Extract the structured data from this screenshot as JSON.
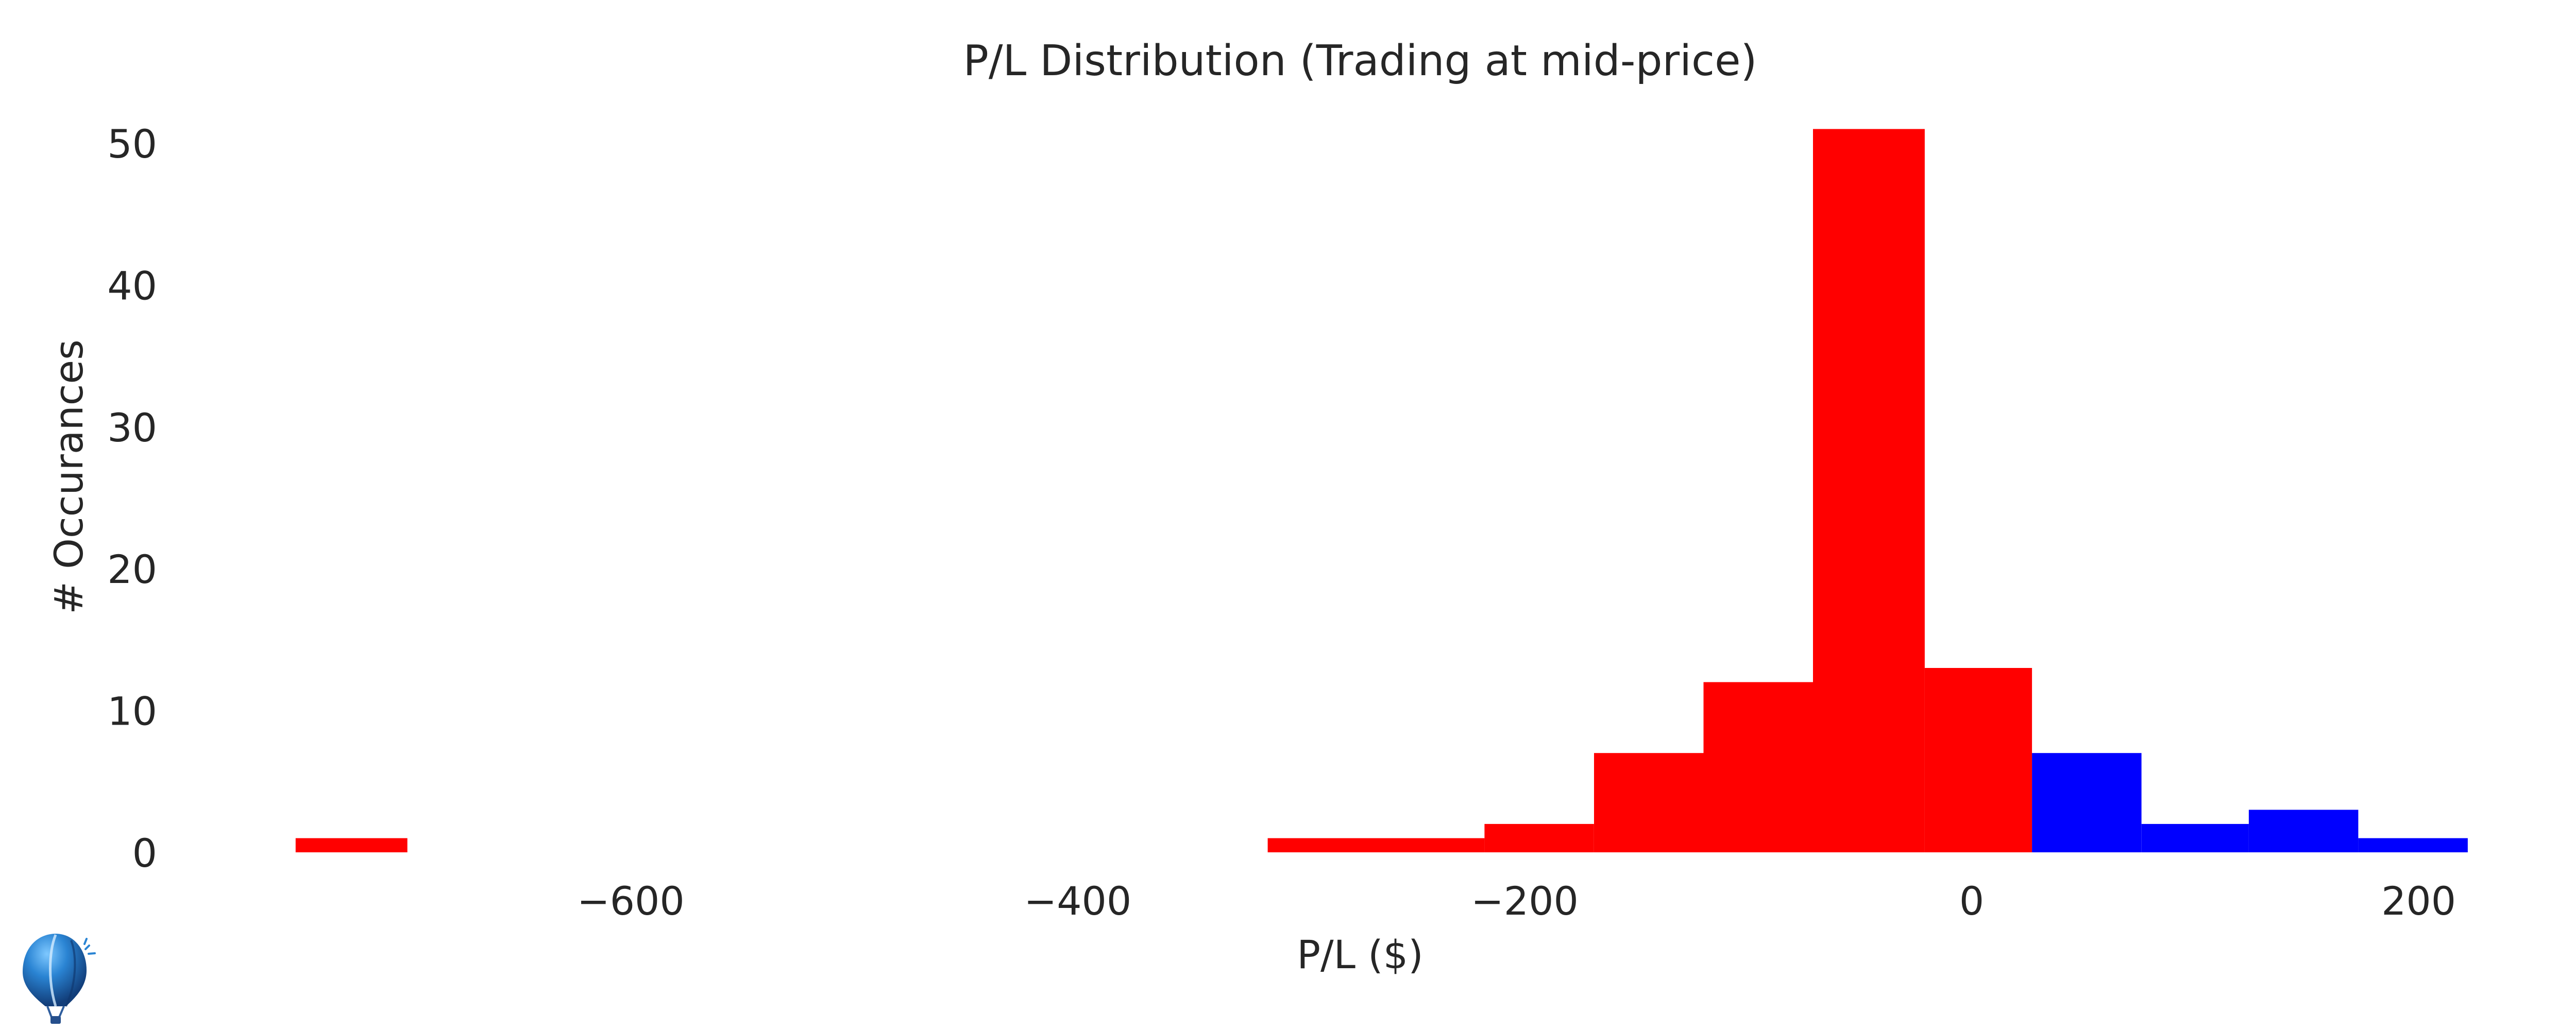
{
  "chart_data": {
    "type": "bar",
    "title": "P/L Distribution (Trading at mid-price)",
    "xlabel": "P/L ($)",
    "ylabel": "# Occurances",
    "xlim": [
      -770,
      225
    ],
    "ylim": [
      0,
      52
    ],
    "x_ticks": [
      -600,
      -400,
      -200,
      0,
      200
    ],
    "x_tick_labels": [
      "−600",
      "−400",
      "−200",
      "0",
      "200"
    ],
    "y_ticks": [
      0,
      10,
      20,
      30,
      40,
      50
    ],
    "y_tick_labels": [
      "0",
      "10",
      "20",
      "30",
      "40",
      "50"
    ],
    "grid": false,
    "legend": "none",
    "colors": {
      "loss": "#ff0000",
      "profit": "#0000ff"
    },
    "bins": [
      {
        "x0": -750,
        "x1": -700,
        "count": 1,
        "color": "loss"
      },
      {
        "x0": -315,
        "x1": -218,
        "count": 1,
        "color": "loss"
      },
      {
        "x0": -218,
        "x1": -169,
        "count": 2,
        "color": "loss"
      },
      {
        "x0": -169,
        "x1": -120,
        "count": 7,
        "color": "loss"
      },
      {
        "x0": -120,
        "x1": -71,
        "count": 12,
        "color": "loss"
      },
      {
        "x0": -71,
        "x1": -21,
        "count": 51,
        "color": "loss"
      },
      {
        "x0": -21,
        "x1": 27,
        "count": 13,
        "color": "loss"
      },
      {
        "x0": 27,
        "x1": 76,
        "count": 7,
        "color": "profit"
      },
      {
        "x0": 76,
        "x1": 124,
        "count": 2,
        "color": "profit"
      },
      {
        "x0": 124,
        "x1": 173,
        "count": 3,
        "color": "profit"
      },
      {
        "x0": 173,
        "x1": 222,
        "count": 1,
        "color": "profit"
      }
    ]
  },
  "logo": {
    "icon": "hot-air-balloon-logo"
  }
}
